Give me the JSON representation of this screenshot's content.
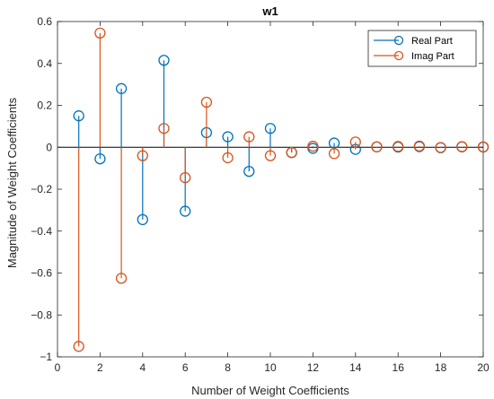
{
  "chart_data": {
    "type": "stem",
    "title": "w1",
    "xlabel": "Number of Weight Coefficients",
    "ylabel": "Magnitude of Weight Coefficients",
    "xlim": [
      0,
      20
    ],
    "ylim": [
      -1,
      0.6
    ],
    "xticks": [
      0,
      2,
      4,
      6,
      8,
      10,
      12,
      14,
      16,
      18,
      20
    ],
    "yticks": [
      -1,
      -0.8,
      -0.6,
      -0.4,
      -0.2,
      0,
      0.2,
      0.4,
      0.6
    ],
    "ytick_labels": [
      "−1",
      "−0.8",
      "−0.6",
      "−0.4",
      "−0.2",
      "0",
      "0.2",
      "0.4",
      "0.6"
    ],
    "legend_position": "top-right",
    "grid": false,
    "series": [
      {
        "name": "Real Part",
        "color": "#0072BD",
        "x": [
          1,
          2,
          3,
          4,
          5,
          6,
          7,
          8,
          9,
          10,
          11,
          12,
          13,
          14,
          15,
          16,
          17,
          18,
          19,
          20
        ],
        "values": [
          0.15,
          -0.055,
          0.28,
          -0.345,
          0.415,
          -0.305,
          0.07,
          0.05,
          -0.115,
          0.09,
          -0.025,
          -0.005,
          0.02,
          -0.01,
          0.002,
          0.001,
          0.003,
          -0.002,
          0.002,
          0.001
        ]
      },
      {
        "name": "Imag Part",
        "color": "#D95319",
        "x": [
          1,
          2,
          3,
          4,
          5,
          6,
          7,
          8,
          9,
          10,
          11,
          12,
          13,
          14,
          15,
          16,
          17,
          18,
          19,
          20
        ],
        "values": [
          -0.95,
          0.545,
          -0.625,
          -0.04,
          0.09,
          -0.145,
          0.215,
          -0.05,
          0.05,
          -0.04,
          -0.025,
          0.005,
          -0.03,
          0.025,
          0.002,
          0.004,
          0.006,
          -0.001,
          0.003,
          0.002
        ]
      }
    ]
  }
}
